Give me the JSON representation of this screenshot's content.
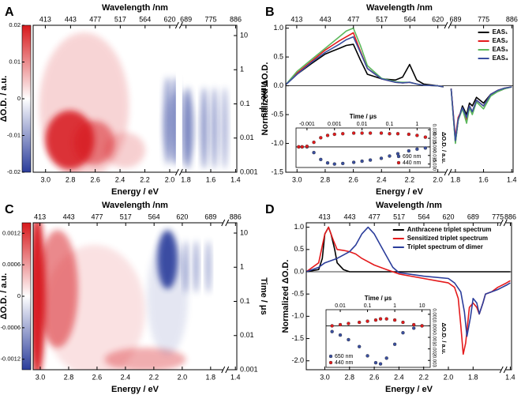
{
  "chart_data": [
    {
      "type": "heatmap",
      "panel_label": "A",
      "xlabel": "Energy / eV",
      "x2label": "Wavelength /nm",
      "y2label": "Time / μs",
      "colorbar_label": "ΔO.D. / a.u.",
      "xlim": [
        3.1,
        1.39
      ],
      "x_break": [
        1.95,
        1.83
      ],
      "xticks": [
        {
          "value": 3.0,
          "label": "3.0"
        },
        2.8,
        2.6,
        2.4,
        2.2,
        {
          "value": 2.0,
          "label": "2.0"
        },
        1.8,
        1.6,
        1.4
      ],
      "x2ticks": [
        413,
        443,
        477,
        517,
        564,
        620,
        689,
        775,
        886
      ],
      "y2scale": "log",
      "y2lim": [
        0.001,
        20
      ],
      "y2ticks": [
        0.001,
        0.01,
        0.1,
        1,
        10
      ],
      "colorbar_lim": [
        -0.02,
        0.02
      ],
      "colorbar_ticks": [
        0.02,
        0.01,
        0,
        -0.01,
        -0.02
      ],
      "colormap": [
        "#d7191c",
        "#ffffff",
        "#2b3d9b"
      ]
    },
    {
      "type": "line",
      "panel_label": "B",
      "xlabel": "Energy / eV",
      "x2label": "Wavelength /nm",
      "ylabel": "Normalized ΔO.D.",
      "xlim": [
        3.08,
        1.39
      ],
      "x_break": [
        1.95,
        1.83
      ],
      "xticks": [
        {
          "value": 3.0,
          "label": "3.0"
        },
        2.8,
        2.6,
        2.4,
        2.2,
        {
          "value": 2.0,
          "label": "2.0"
        },
        1.8,
        1.6,
        1.4
      ],
      "x2ticks": [
        413,
        443,
        477,
        517,
        564,
        620,
        689,
        775,
        886
      ],
      "ylim": [
        -1.5,
        1.05
      ],
      "yticks": [
        -1.5,
        {
          "value": -1.0,
          "label": "-1.0"
        },
        -0.5,
        {
          "value": 0.0,
          "label": "0.0"
        },
        0.5,
        {
          "value": 1.0,
          "label": "1.0"
        }
      ],
      "zero_line": true,
      "legend": "upper right",
      "x": [
        3.08,
        3.0,
        2.9,
        2.8,
        2.75,
        2.7,
        2.65,
        2.6,
        2.55,
        2.5,
        2.4,
        2.3,
        2.25,
        2.2,
        2.15,
        2.1,
        2.0,
        1.96,
        1.9,
        1.83,
        1.8,
        1.78,
        1.75,
        1.72,
        1.7,
        1.68,
        1.65,
        1.6,
        1.55,
        1.5,
        1.45,
        1.4
      ],
      "series": [
        {
          "name": "EAS₁",
          "color": "#000000",
          "values": [
            0.02,
            0.2,
            0.38,
            0.55,
            0.6,
            0.65,
            0.7,
            0.72,
            0.45,
            0.2,
            0.12,
            0.1,
            0.15,
            0.37,
            0.1,
            0.03,
            0.0,
            -0.02,
            null,
            -0.05,
            -0.98,
            -0.6,
            -0.35,
            -0.5,
            -0.3,
            -0.35,
            -0.2,
            -0.3,
            -0.15,
            -0.1,
            -0.05,
            -0.02
          ]
        },
        {
          "name": "EAS₂",
          "color": "#e41a1c",
          "values": [
            0.02,
            0.22,
            0.42,
            0.62,
            0.7,
            0.78,
            0.85,
            0.92,
            0.6,
            0.3,
            0.12,
            0.06,
            0.05,
            0.06,
            0.03,
            0.01,
            0.0,
            -0.02,
            null,
            -0.05,
            -0.9,
            -0.55,
            -0.4,
            -0.6,
            -0.35,
            -0.45,
            -0.25,
            -0.35,
            -0.15,
            -0.08,
            -0.04,
            -0.02
          ]
        },
        {
          "name": "EAS₃",
          "color": "#5cb85c",
          "values": [
            0.02,
            0.25,
            0.45,
            0.65,
            0.75,
            0.85,
            0.95,
            1.0,
            0.7,
            0.35,
            0.13,
            0.07,
            0.06,
            0.06,
            0.03,
            0.01,
            0.0,
            -0.02,
            null,
            -0.06,
            -1.0,
            -0.6,
            -0.4,
            -0.65,
            -0.38,
            -0.5,
            -0.28,
            -0.4,
            -0.18,
            -0.1,
            -0.05,
            -0.02
          ]
        },
        {
          "name": "EAS₄",
          "color": "#3a4fa0",
          "values": [
            0.02,
            0.2,
            0.4,
            0.58,
            0.65,
            0.72,
            0.8,
            0.85,
            0.58,
            0.3,
            0.12,
            0.06,
            0.05,
            0.06,
            0.03,
            0.01,
            0.0,
            -0.02,
            null,
            -0.05,
            -0.95,
            -0.58,
            -0.38,
            -0.55,
            -0.35,
            -0.45,
            -0.25,
            -0.35,
            -0.15,
            -0.08,
            -0.04,
            -0.02
          ]
        }
      ],
      "inset": {
        "type": "scatter",
        "xlabel": "Time / μs",
        "ylabel": "ΔO.D. / a.u.",
        "xscale": "symlog",
        "linthresh": 0.001,
        "xlim": [
          -0.0025,
          3
        ],
        "xticks": [
          -0.001,
          0.001,
          0.01,
          0.1,
          1
        ],
        "ylim": [
          -0.036,
          0.033
        ],
        "yticks": [
          {
            "value": 0.03,
            "label": "0.030"
          },
          0.015,
          {
            "value": 0.0,
            "label": "0.000"
          },
          -0.015,
          {
            "value": -0.03,
            "label": "-0.030"
          }
        ],
        "zero_line": true,
        "legend": "lower right",
        "series": [
          {
            "name": "690 nm",
            "color": "#3a4fa0",
            "x": [
              -0.002,
              -0.0015,
              -0.001,
              -0.0005,
              0,
              0.0005,
              0.001,
              0.002,
              0.005,
              0.01,
              0.02,
              0.05,
              0.1,
              0.2,
              0.5,
              1,
              2
            ],
            "values": [
              0,
              0,
              0,
              -0.01,
              -0.022,
              -0.028,
              -0.03,
              -0.029,
              -0.027,
              -0.025,
              -0.023,
              -0.02,
              -0.016,
              -0.012,
              -0.007,
              -0.004,
              -0.002
            ]
          },
          {
            "name": "440 nm",
            "color": "#e41a1c",
            "x": [
              -0.002,
              -0.0015,
              -0.001,
              -0.0005,
              0,
              0.0005,
              0.001,
              0.002,
              0.005,
              0.01,
              0.02,
              0.05,
              0.1,
              0.2,
              0.5,
              1,
              2
            ],
            "values": [
              0,
              0,
              0.001,
              0.008,
              0.016,
              0.02,
              0.022,
              0.023,
              0.024,
              0.024,
              0.024,
              0.024,
              0.023,
              0.023,
              0.022,
              0.02,
              0.017
            ]
          }
        ]
      }
    },
    {
      "type": "heatmap",
      "panel_label": "C",
      "xlabel": "Energy / eV",
      "x2label": "Wavelength /nm",
      "y2label": "Time / μs",
      "colorbar_label": "ΔO.D. / a.u.",
      "xlim": [
        3.05,
        1.39
      ],
      "x_break": [
        1.72,
        1.45
      ],
      "xticks": [
        {
          "value": 3.0,
          "label": "3.0"
        },
        2.8,
        2.6,
        2.4,
        2.2,
        {
          "value": 2.0,
          "label": "2.0"
        },
        1.8,
        1.4
      ],
      "x2ticks": [
        413,
        443,
        477,
        517,
        564,
        620,
        689,
        886
      ],
      "y2scale": "log",
      "y2lim": [
        0.001,
        20
      ],
      "y2ticks": [
        0.001,
        0.01,
        0.1,
        1,
        10
      ],
      "colorbar_lim": [
        -0.0014,
        0.0014
      ],
      "colorbar_ticks": [
        0.0012,
        0.0006,
        0,
        -0.0006,
        -0.0012
      ],
      "colormap": [
        "#d7191c",
        "#ffffff",
        "#2b3d9b"
      ]
    },
    {
      "type": "line",
      "panel_label": "D",
      "xlabel": "Energy / eV",
      "x2label": "Wavelength /nm",
      "ylabel": "Normalized ΔO.D.",
      "xlim": [
        3.15,
        1.39
      ],
      "x_break": [
        1.58,
        1.43
      ],
      "xticks": [
        {
          "value": 3.0,
          "label": "3.0"
        },
        2.8,
        2.6,
        2.4,
        2.2,
        {
          "value": 2.0,
          "label": "2.0"
        },
        1.8,
        1.4
      ],
      "x2ticks": [
        413,
        443,
        477,
        517,
        564,
        620,
        689,
        775,
        886
      ],
      "ylim": [
        -2.2,
        1.1
      ],
      "yticks": [
        {
          "value": -2.0,
          "label": "-2.0"
        },
        -1.5,
        {
          "value": -1.0,
          "label": "-1.0"
        },
        -0.5,
        {
          "value": 0.0,
          "label": "0.0"
        },
        0.5,
        {
          "value": 1.0,
          "label": "1.0"
        }
      ],
      "zero_line": true,
      "legend": "upper right",
      "series": [
        {
          "name": "Anthracene triplet spectrum",
          "color": "#000000",
          "x": [
            3.15,
            3.05,
            3.02,
            3.0,
            2.97,
            2.95,
            2.92,
            2.9,
            2.85,
            2.8,
            2.5,
            2.2,
            2.0,
            1.9,
            1.8,
            1.7,
            1.6,
            1.43,
            1.4
          ],
          "values": [
            0,
            0.05,
            0.3,
            0.85,
            1.0,
            0.85,
            0.5,
            0.2,
            0.05,
            0,
            0,
            0,
            0,
            0,
            0,
            0,
            0,
            0,
            0
          ]
        },
        {
          "name": "Sensitized triplet spectrum",
          "color": "#e41a1c",
          "x": [
            3.15,
            3.05,
            3.0,
            2.97,
            2.93,
            2.9,
            2.85,
            2.8,
            2.75,
            2.7,
            2.6,
            2.5,
            2.4,
            2.2,
            2.1,
            2.0,
            1.95,
            1.92,
            1.9,
            1.88,
            1.86,
            1.83,
            1.8,
            1.77,
            1.75,
            1.72,
            1.7,
            1.65,
            1.6,
            1.43,
            1.4
          ],
          "values": [
            0,
            0.2,
            0.85,
            1.0,
            0.7,
            0.5,
            0.48,
            0.45,
            0.4,
            0.3,
            0.15,
            0.05,
            -0.05,
            -0.15,
            -0.2,
            -0.25,
            -0.35,
            -0.6,
            -1.2,
            -1.85,
            -1.6,
            -0.8,
            -0.7,
            -0.8,
            -0.95,
            -0.7,
            -0.5,
            -0.45,
            -0.35,
            -0.25,
            -0.2
          ]
        },
        {
          "name": "Triplet spectrum of dimer",
          "color": "#2b3d9b",
          "x": [
            3.15,
            3.05,
            3.0,
            2.9,
            2.8,
            2.75,
            2.7,
            2.65,
            2.6,
            2.55,
            2.5,
            2.45,
            2.4,
            2.2,
            2.0,
            1.95,
            1.9,
            1.87,
            1.85,
            1.82,
            1.8,
            1.77,
            1.75,
            1.72,
            1.7,
            1.65,
            1.6,
            1.43,
            1.4
          ],
          "values": [
            0,
            0.1,
            0.2,
            0.3,
            0.45,
            0.6,
            0.85,
            1.0,
            0.85,
            0.6,
            0.35,
            0.1,
            -0.02,
            -0.1,
            -0.15,
            -0.25,
            -0.45,
            -0.9,
            -1.45,
            -1.0,
            -0.6,
            -0.7,
            -0.95,
            -0.7,
            -0.5,
            -0.45,
            -0.4,
            -0.3,
            -0.25
          ]
        }
      ],
      "inset": {
        "type": "scatter",
        "xlabel": "Time / μs",
        "ylabel": "ΔO.D. / a.u.",
        "xscale": "log",
        "xlim": [
          0.003,
          20
        ],
        "xticks": [
          0.01,
          0.1,
          1,
          10
        ],
        "ylim": [
          -0.0036,
          0.0014
        ],
        "yticks": [
          0.001,
          {
            "value": 0.0,
            "label": "0.000"
          },
          -0.001,
          -0.002,
          -0.003
        ],
        "zero_line": true,
        "legend": "lower left",
        "series": [
          {
            "name": "650 nm",
            "color": "#3a4fa0",
            "x": [
              0.005,
              0.01,
              0.02,
              0.05,
              0.1,
              0.2,
              0.3,
              0.5,
              1,
              2,
              5,
              10
            ],
            "values": [
              -0.0005,
              -0.0008,
              -0.0012,
              -0.0018,
              -0.0026,
              -0.0032,
              -0.0033,
              -0.0028,
              -0.0016,
              -0.0006,
              -0.0002,
              0
            ]
          },
          {
            "name": "440 nm",
            "color": "#e41a1c",
            "x": [
              0.005,
              0.01,
              0.02,
              0.05,
              0.1,
              0.2,
              0.3,
              0.5,
              1,
              2,
              5,
              10
            ],
            "values": [
              0,
              0.0001,
              0.0002,
              0.0003,
              0.0004,
              0.0005,
              0.0006,
              0.0006,
              0.0005,
              0.0003,
              0.0001,
              0
            ]
          }
        ]
      }
    }
  ]
}
